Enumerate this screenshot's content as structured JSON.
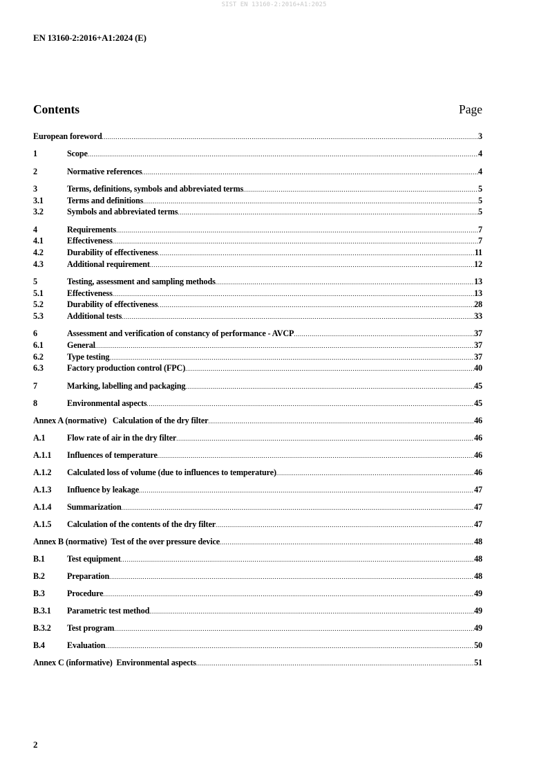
{
  "watermark": "SIST EN 13160-2:2016+A1:2025",
  "header": "EN 13160-2:2016+A1:2024 (E)",
  "contents_title": "Contents",
  "page_label": "Page",
  "toc_groups": [
    [
      {
        "num": "",
        "title": "European foreword",
        "page": "3",
        "full": true
      }
    ],
    [
      {
        "num": "1",
        "title": "Scope",
        "page": "4"
      }
    ],
    [
      {
        "num": "2",
        "title": "Normative references",
        "page": "4"
      }
    ],
    [
      {
        "num": "3",
        "title": "Terms, definitions, symbols and abbreviated terms",
        "page": "5"
      },
      {
        "num": "3.1",
        "title": "Terms and definitions",
        "page": "5"
      },
      {
        "num": "3.2",
        "title": "Symbols and abbreviated terms",
        "page": "5"
      }
    ],
    [
      {
        "num": "4",
        "title": "Requirements",
        "page": "7"
      },
      {
        "num": "4.1",
        "title": "Effectiveness",
        "page": "7"
      },
      {
        "num": "4.2",
        "title": "Durability of effectiveness",
        "page": "11"
      },
      {
        "num": "4.3",
        "title": "Additional requirement",
        "page": "12"
      }
    ],
    [
      {
        "num": "5",
        "title": "Testing, assessment and sampling methods",
        "page": "13"
      },
      {
        "num": "5.1",
        "title": "Effectiveness",
        "page": "13"
      },
      {
        "num": "5.2",
        "title": "Durability of effectiveness",
        "page": "28"
      },
      {
        "num": "5.3",
        "title": "Additional tests",
        "page": "33"
      }
    ],
    [
      {
        "num": "6",
        "title": "Assessment and verification of constancy of performance - AVCP",
        "page": "37"
      },
      {
        "num": "6.1",
        "title": "General",
        "page": "37"
      },
      {
        "num": "6.2",
        "title": "Type testing",
        "page": "37"
      },
      {
        "num": "6.3",
        "title": "Factory production control (FPC)",
        "page": "40"
      }
    ],
    [
      {
        "num": "7",
        "title": "Marking, labelling and packaging",
        "page": "45"
      }
    ],
    [
      {
        "num": "8",
        "title": "Environmental aspects",
        "page": "45"
      }
    ],
    [
      {
        "num": "",
        "title": "Annex A (normative)   Calculation of the dry filter",
        "page": "46",
        "full": true
      }
    ],
    [
      {
        "num": "A.1",
        "title": "Flow rate of air in the dry filter",
        "page": "46"
      }
    ],
    [
      {
        "num": "A.1.1",
        "title": "Influences of temperature",
        "page": "46"
      }
    ],
    [
      {
        "num": "A.1.2",
        "title": "Calculated loss of volume (due to influences to temperature)",
        "page": "46"
      }
    ],
    [
      {
        "num": "A.1.3",
        "title": "Influence by leakage",
        "page": "47"
      }
    ],
    [
      {
        "num": "A.1.4",
        "title": "Summarization",
        "page": "47"
      }
    ],
    [
      {
        "num": "A.1.5",
        "title": "Calculation of the contents of the dry filter",
        "page": "47"
      }
    ],
    [
      {
        "num": "",
        "title": "Annex B (normative)  Test of the over pressure device",
        "page": "48",
        "full": true
      }
    ],
    [
      {
        "num": "B.1",
        "title": "Test equipment",
        "page": "48"
      }
    ],
    [
      {
        "num": "B.2",
        "title": "Preparation",
        "page": "48"
      }
    ],
    [
      {
        "num": "B.3",
        "title": "Procedure",
        "page": "49"
      }
    ],
    [
      {
        "num": "B.3.1",
        "title": "Parametric test method",
        "page": "49"
      }
    ],
    [
      {
        "num": "B.3.2",
        "title": "Test program",
        "page": "49"
      }
    ],
    [
      {
        "num": "B.4",
        "title": "Evaluation",
        "page": "50"
      }
    ],
    [
      {
        "num": "",
        "title": "Annex C (informative)  Environmental aspects",
        "page": "51",
        "full": true
      }
    ]
  ],
  "page_number": "2"
}
